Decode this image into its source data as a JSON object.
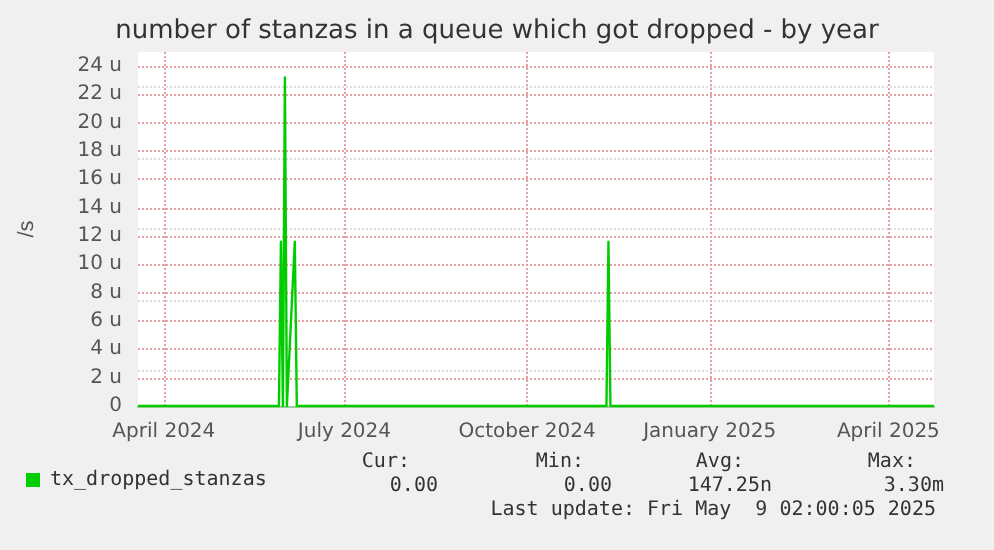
{
  "chart_data": {
    "type": "line",
    "title": "number of stanzas in a queue which got dropped - by year",
    "ylabel": "/s",
    "x": [
      "2024-03-19",
      "2024-05-29",
      "2024-05-30",
      "2024-05-31",
      "2024-06-01",
      "2024-06-02",
      "2024-06-06",
      "2024-06-07",
      "2024-11-10",
      "2024-11-11",
      "2024-11-12",
      "2025-04-24"
    ],
    "series": [
      {
        "name": "tx_dropped_stanzas",
        "color": "#00cc00",
        "values": [
          0,
          0,
          11.6,
          0,
          23.2,
          0,
          11.6,
          0,
          0,
          11.6,
          0,
          0
        ]
      }
    ],
    "xlim": [
      "2024-03-19",
      "2025-04-24"
    ],
    "xticks": [
      {
        "value": "2024-04-01",
        "label": "April 2024"
      },
      {
        "value": "2024-07-01",
        "label": "July 2024"
      },
      {
        "value": "2024-10-01",
        "label": "October 2024"
      },
      {
        "value": "2025-01-01",
        "label": "January 2025"
      },
      {
        "value": "2025-04-01",
        "label": "April 2025"
      }
    ],
    "ylim": [
      0,
      25
    ],
    "yticks": [
      {
        "value": 0,
        "label": "0"
      },
      {
        "value": 2,
        "label": "2 u"
      },
      {
        "value": 4,
        "label": "4 u"
      },
      {
        "value": 6,
        "label": "6 u"
      },
      {
        "value": 8,
        "label": "8 u"
      },
      {
        "value": 10,
        "label": "10 u"
      },
      {
        "value": 12,
        "label": "12 u"
      },
      {
        "value": 14,
        "label": "14 u"
      },
      {
        "value": 16,
        "label": "16 u"
      },
      {
        "value": 18,
        "label": "18 u"
      },
      {
        "value": 20,
        "label": "20 u"
      },
      {
        "value": 22,
        "label": "22 u"
      },
      {
        "value": 24,
        "label": "24 u"
      }
    ],
    "grid": true,
    "legend": "bottom left",
    "marker": "none",
    "line_style": "solid",
    "annotations": [
      "Cur:",
      "Min:",
      "Avg:",
      "Max:",
      "0.00",
      "0.00",
      "147.25n",
      "3.30m",
      "Last update: Fri May  9 02:00:05 2025"
    ]
  }
}
